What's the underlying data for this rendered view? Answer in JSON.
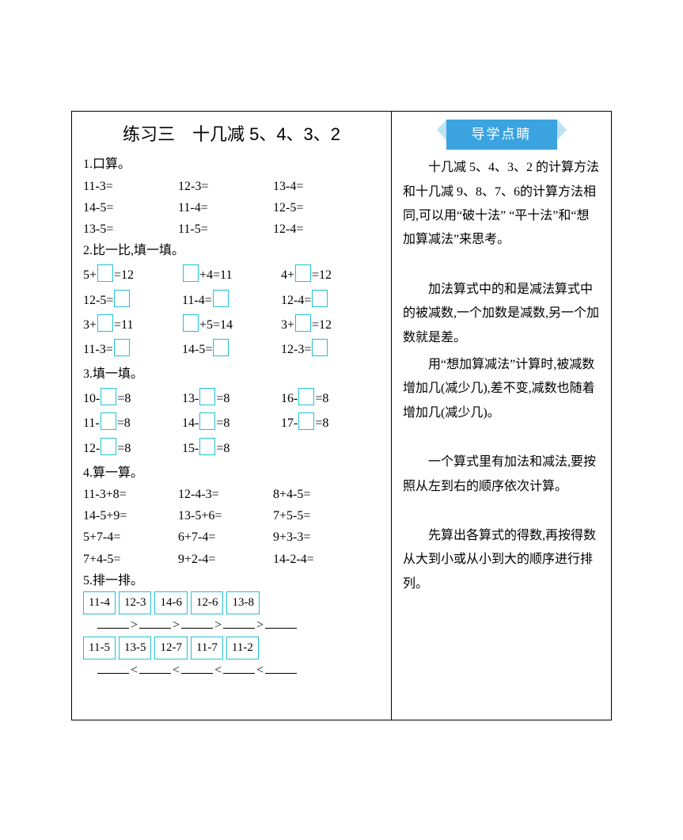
{
  "title": "练习三　十几减 5、4、3、2",
  "sections": {
    "s1": {
      "label": "1.口算。",
      "rows": [
        [
          "11-3=",
          "12-3=",
          "13-4="
        ],
        [
          "14-5=",
          "11-4=",
          "12-5="
        ],
        [
          "13-5=",
          "11-5=",
          "12-4="
        ]
      ]
    },
    "s2": {
      "label": "2.比一比,填一填。",
      "rows": [
        [
          {
            "pre": "5+",
            "post": "=12"
          },
          {
            "pre": "",
            "post": "+4=11"
          },
          {
            "pre": "4+",
            "post": "=12"
          }
        ],
        [
          {
            "pre": "12-5=",
            "post": ""
          },
          {
            "pre": "11-4=",
            "post": ""
          },
          {
            "pre": "12-4=",
            "post": ""
          }
        ],
        [
          {
            "pre": "3+",
            "post": "=11"
          },
          {
            "pre": "",
            "post": "+5=14"
          },
          {
            "pre": "3+",
            "post": "=12"
          }
        ],
        [
          {
            "pre": "11-3=",
            "post": ""
          },
          {
            "pre": "14-5=",
            "post": ""
          },
          {
            "pre": "12-3=",
            "post": ""
          }
        ]
      ]
    },
    "s3": {
      "label": "3.填一填。",
      "rows": [
        [
          {
            "pre": "10-",
            "post": "=8"
          },
          {
            "pre": "13-",
            "post": "=8"
          },
          {
            "pre": "16-",
            "post": "=8"
          }
        ],
        [
          {
            "pre": "11-",
            "post": "=8"
          },
          {
            "pre": "14-",
            "post": "=8"
          },
          {
            "pre": "17-",
            "post": "=8"
          }
        ],
        [
          {
            "pre": "12-",
            "post": "=8"
          },
          {
            "pre": "15-",
            "post": "=8"
          }
        ]
      ]
    },
    "s4": {
      "label": "4.算一算。",
      "rows": [
        [
          "11-3+8=",
          "12-4-3=",
          "8+4-5="
        ],
        [
          "14-5+9=",
          "13-5+6=",
          "7+5-5="
        ],
        [
          "5+7-4=",
          "6+7-4=",
          "9+3-3="
        ],
        [
          "7+4-5=",
          "9+2-4=",
          "14-2-4="
        ]
      ]
    },
    "s5": {
      "label": "5.排一排。",
      "line1": [
        "11-4",
        "12-3",
        "14-6",
        "12-6",
        "13-8"
      ],
      "cmp1": ">",
      "line2": [
        "11-5",
        "13-5",
        "12-7",
        "11-7",
        "11-2"
      ],
      "cmp2": "<"
    }
  },
  "guide": {
    "header": "导学点睛",
    "p1": "十几减 5、4、3、2 的计算方法和十几减 9、8、7、6的计算方法相同,可以用“破十法” “平十法”和“想加算减法”来思考。",
    "p2": "加法算式中的和是减法算式中的被减数,一个加数是减数,另一个加数就是差。",
    "p3": "用“想加算减法”计算时,被减数增加几(减少几),差不变,减数也随着增加几(减少几)。",
    "p4": "一个算式里有加法和减法,要按照从左到右的顺序依次计算。",
    "p5": "先算出各算式的得数,再按得数从大到小或从小到大的顺序进行排列。"
  }
}
